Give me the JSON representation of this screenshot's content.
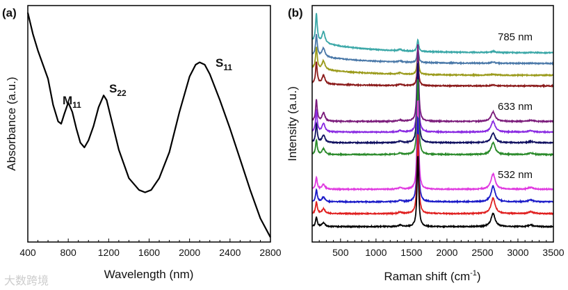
{
  "chart_data": [
    {
      "type": "line",
      "panel_label": "(a)",
      "xlabel": "Wavelength (nm)",
      "ylabel": "Absorbance (a.u.)",
      "xlim": [
        400,
        2800
      ],
      "ylim": [
        0,
        1
      ],
      "xticks": [
        "400",
        "800",
        "1200",
        "1600",
        "2000",
        "2400",
        "2800"
      ],
      "annotations": [
        {
          "label": "M",
          "sub": "11",
          "x": 800
        },
        {
          "label": "S",
          "sub": "22",
          "x": 1160
        },
        {
          "label": "S",
          "sub": "11",
          "x": 2100
        }
      ],
      "x": [
        400,
        450,
        500,
        550,
        600,
        650,
        700,
        730,
        760,
        800,
        840,
        880,
        920,
        960,
        1000,
        1050,
        1100,
        1150,
        1180,
        1220,
        1260,
        1300,
        1400,
        1500,
        1560,
        1620,
        1700,
        1800,
        1900,
        2000,
        2060,
        2100,
        2150,
        2200,
        2300,
        2400,
        2500,
        2600,
        2700,
        2800
      ],
      "y": [
        0.97,
        0.88,
        0.81,
        0.75,
        0.69,
        0.58,
        0.51,
        0.5,
        0.54,
        0.59,
        0.55,
        0.48,
        0.42,
        0.4,
        0.43,
        0.49,
        0.57,
        0.62,
        0.6,
        0.53,
        0.46,
        0.39,
        0.27,
        0.22,
        0.21,
        0.22,
        0.27,
        0.38,
        0.55,
        0.7,
        0.75,
        0.76,
        0.75,
        0.71,
        0.6,
        0.48,
        0.35,
        0.22,
        0.1,
        0.02
      ],
      "color": "#000000"
    },
    {
      "type": "line",
      "panel_label": "(b)",
      "xlabel": "Raman shift (cm",
      "xlabel_sup": "-1",
      "xlabel_end": ")",
      "ylabel": "Intensity (a.u.)",
      "xlim": [
        100,
        3500
      ],
      "ylim": [
        0,
        10
      ],
      "xticks": [
        "500",
        "1000",
        "1500",
        "2000",
        "2500",
        "3000",
        "3500"
      ],
      "group_labels": [
        "785 nm",
        "633 nm",
        "532 nm"
      ],
      "series": [
        {
          "group": "785 nm",
          "color": "#3aa7a7",
          "offset": 8.0,
          "rbm": 1.2,
          "g": 0.5,
          "d2": 0.05,
          "bg": 0.5
        },
        {
          "group": "785 nm",
          "color": "#4a78a8",
          "offset": 7.55,
          "rbm": 0.9,
          "g": 0.6,
          "d2": 0.05,
          "bg": 0.35
        },
        {
          "group": "785 nm",
          "color": "#9a9a1a",
          "offset": 7.05,
          "rbm": 0.9,
          "g": 0.9,
          "d2": 0.04,
          "bg": 0.3
        },
        {
          "group": "785 nm",
          "color": "#8b1a1a",
          "offset": 6.6,
          "rbm": 0.9,
          "g": 1.1,
          "d2": 0.04,
          "bg": 0.1
        },
        {
          "group": "633 nm",
          "color": "#7a1a7a",
          "offset": 5.1,
          "rbm": 0.9,
          "g": 3.3,
          "d2": 0.4,
          "bg": 0
        },
        {
          "group": "633 nm",
          "color": "#8a2be2",
          "offset": 4.65,
          "rbm": 0.9,
          "g": 3.0,
          "d2": 0.45,
          "bg": 0
        },
        {
          "group": "633 nm",
          "color": "#101060",
          "offset": 4.2,
          "rbm": 0.8,
          "g": 3.4,
          "d2": 0.4,
          "bg": 0
        },
        {
          "group": "633 nm",
          "color": "#2a8a2a",
          "offset": 3.7,
          "rbm": 0.6,
          "g": 3.2,
          "d2": 0.5,
          "bg": 0
        },
        {
          "group": "532 nm",
          "color": "#e03ae0",
          "offset": 2.23,
          "rbm": 0.5,
          "g": 3.8,
          "d2": 0.65,
          "bg": 0
        },
        {
          "group": "532 nm",
          "color": "#1a1ac8",
          "offset": 1.7,
          "rbm": 0.5,
          "g": 3.6,
          "d2": 0.65,
          "bg": 0
        },
        {
          "group": "532 nm",
          "color": "#e02020",
          "offset": 1.2,
          "rbm": 0.5,
          "g": 3.4,
          "d2": 0.65,
          "bg": 0
        },
        {
          "group": "532 nm",
          "color": "#000000",
          "offset": 0.65,
          "rbm": 0.4,
          "g": 3.0,
          "d2": 0.55,
          "bg": 0
        }
      ]
    }
  ],
  "watermark": "大数跨境"
}
